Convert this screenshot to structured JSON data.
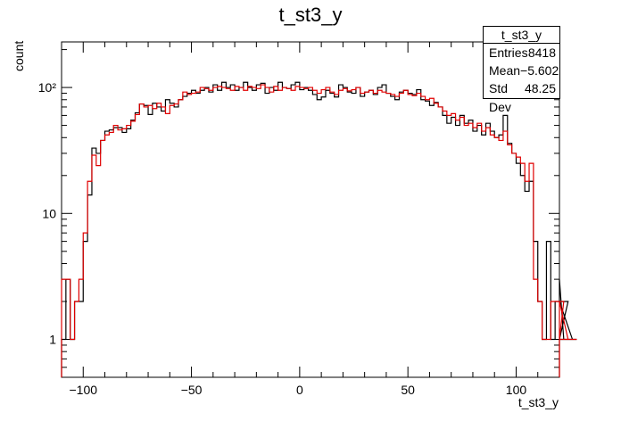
{
  "chart_data": {
    "type": "histogram",
    "title": "t_st3_y",
    "xlabel": "t_st3_y",
    "ylabel": "count",
    "xlim": [
      -110,
      120
    ],
    "ylim": [
      0.5,
      230
    ],
    "yscale": "log",
    "x_ticks": [
      "-100",
      "-50",
      "0",
      "50",
      "100"
    ],
    "x_tick_values": [
      -100,
      -50,
      0,
      50,
      100
    ],
    "y_ticks": [
      "1",
      "10",
      "10²"
    ],
    "y_tick_values": [
      1,
      10,
      100
    ],
    "bin_width": 2,
    "bin_start": -110,
    "series": [
      {
        "color": "#000000",
        "values": [
          1,
          3,
          1,
          2,
          2,
          6,
          14,
          33,
          30,
          38,
          45,
          46,
          48,
          48,
          44,
          47,
          55,
          63,
          74,
          72,
          61,
          75,
          70,
          65,
          80,
          75,
          70,
          80,
          85,
          90,
          95,
          90,
          95,
          100,
          92,
          105,
          95,
          110,
          100,
          105,
          95,
          100,
          110,
          100,
          95,
          105,
          108,
          90,
          100,
          95,
          110,
          100,
          98,
          105,
          110,
          96,
          100,
          95,
          88,
          80,
          84,
          95,
          90,
          84,
          105,
          100,
          92,
          90,
          100,
          85,
          92,
          95,
          88,
          100,
          105,
          90,
          85,
          80,
          92,
          95,
          90,
          88,
          96,
          80,
          78,
          72,
          76,
          70,
          60,
          52,
          58,
          50,
          60,
          52,
          55,
          45,
          50,
          42,
          52,
          45,
          40,
          42,
          60,
          36,
          30,
          25,
          20,
          15,
          18,
          6,
          2,
          1,
          6,
          1,
          2,
          3,
          1,
          2,
          1,
          1
        ]
      },
      {
        "color": "#e00000",
        "values": [
          3,
          3,
          1,
          2,
          3,
          7,
          18,
          29,
          24,
          38,
          42,
          44,
          50,
          46,
          47,
          50,
          54,
          61,
          74,
          70,
          72,
          68,
          75,
          70,
          62,
          72,
          74,
          80,
          92,
          88,
          90,
          92,
          100,
          98,
          95,
          100,
          102,
          100,
          98,
          95,
          102,
          100,
          95,
          102,
          100,
          98,
          105,
          100,
          92,
          102,
          95,
          100,
          98,
          95,
          102,
          100,
          98,
          100,
          95,
          90,
          96,
          100,
          92,
          88,
          95,
          98,
          94,
          96,
          100,
          90,
          92,
          95,
          90,
          95,
          92,
          90,
          88,
          85,
          90,
          95,
          88,
          86,
          90,
          85,
          80,
          82,
          75,
          70,
          65,
          60,
          62,
          55,
          58,
          50,
          52,
          48,
          52,
          45,
          48,
          42,
          40,
          38,
          45,
          35,
          30,
          28,
          25,
          18,
          25,
          3,
          2,
          1,
          1,
          2,
          2,
          1,
          2,
          1,
          1,
          1
        ]
      }
    ],
    "stats": {
      "title": "t_st3_y",
      "rows": [
        {
          "label": "Entries",
          "value": "8418"
        },
        {
          "label": "Mean",
          "value": "−5.602"
        },
        {
          "label": "Std Dev",
          "value": "48.25"
        }
      ]
    }
  }
}
